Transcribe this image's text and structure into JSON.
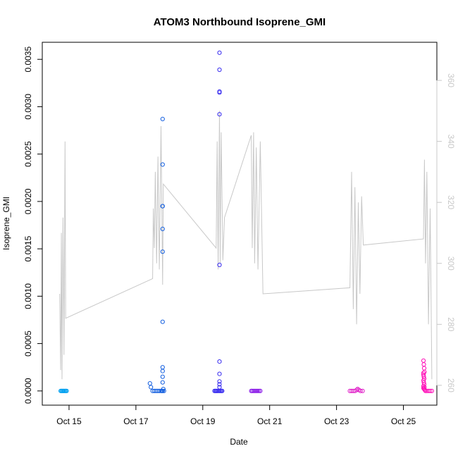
{
  "chart_data": {
    "type": "scatter",
    "title": "ATOM3 Northbound Isoprene_GMI",
    "xlabel": "Date",
    "ylabel": "Isoprene_GMI",
    "x_unit": "days (October, day-of-month)",
    "xlim": [
      14.2,
      26.0
    ],
    "ylim": [
      -0.00015,
      0.00368
    ],
    "y2lim": [
      253.5,
      372.5
    ],
    "x_ticks": [
      {
        "value": 15,
        "label": "Oct 15"
      },
      {
        "value": 17,
        "label": "Oct 17"
      },
      {
        "value": 19,
        "label": "Oct 19"
      },
      {
        "value": 21,
        "label": "Oct 21"
      },
      {
        "value": 23,
        "label": "Oct 23"
      },
      {
        "value": 25,
        "label": "Oct 25"
      }
    ],
    "y_ticks": [
      {
        "value": 0,
        "label": "0.0000"
      },
      {
        "value": 0.0005,
        "label": "0.0005"
      },
      {
        "value": 0.001,
        "label": "0.0010"
      },
      {
        "value": 0.0015,
        "label": "0.0015"
      },
      {
        "value": 0.002,
        "label": "0.0020"
      },
      {
        "value": 0.0025,
        "label": "0.0025"
      },
      {
        "value": 0.003,
        "label": "0.0030"
      },
      {
        "value": 0.0035,
        "label": "0.0035"
      }
    ],
    "y2_ticks": [
      {
        "value": 260,
        "label": "260"
      },
      {
        "value": 280,
        "label": "280"
      },
      {
        "value": 300,
        "label": "300"
      },
      {
        "value": 320,
        "label": "320"
      },
      {
        "value": 340,
        "label": "340"
      },
      {
        "value": 360,
        "label": "360"
      }
    ],
    "grid": false,
    "legend": "none",
    "colors": {
      "line": "#c8c8c8",
      "axis": "#000000",
      "right_axis": "#c8c8c8"
    },
    "scatter_series": [
      {
        "color": "#00a0f0",
        "points": [
          [
            14.75,
            0
          ],
          [
            14.78,
            0
          ],
          [
            14.8,
            0
          ],
          [
            14.83,
            0
          ],
          [
            14.85,
            0
          ],
          [
            14.88,
            0
          ],
          [
            14.9,
            0
          ],
          [
            14.93,
            0
          ]
        ]
      },
      {
        "color": "#1560e0",
        "points": [
          [
            17.42,
            8e-05
          ],
          [
            17.45,
            4e-05
          ],
          [
            17.5,
            0
          ],
          [
            17.55,
            0
          ],
          [
            17.6,
            0
          ],
          [
            17.65,
            0
          ],
          [
            17.7,
            0
          ],
          [
            17.75,
            0
          ],
          [
            17.78,
            0
          ],
          [
            17.8,
            0
          ],
          [
            17.82,
            2e-05
          ],
          [
            17.84,
            0
          ],
          [
            17.8,
            0.00287
          ],
          [
            17.8,
            0.00239
          ],
          [
            17.8,
            0.00195
          ],
          [
            17.8,
            0.00195
          ],
          [
            17.8,
            0.00171
          ],
          [
            17.8,
            0.00147
          ],
          [
            17.8,
            0.00073
          ],
          [
            17.8,
            0.00025
          ],
          [
            17.8,
            0.00021
          ],
          [
            17.8,
            0.00015
          ],
          [
            17.8,
            9e-05
          ]
        ]
      },
      {
        "color": "#3a2ef0",
        "points": [
          [
            19.35,
            0
          ],
          [
            19.38,
            0
          ],
          [
            19.4,
            0
          ],
          [
            19.43,
            0
          ],
          [
            19.46,
            0
          ],
          [
            19.5,
            0
          ],
          [
            19.53,
            0
          ],
          [
            19.56,
            0
          ],
          [
            19.58,
            0
          ],
          [
            19.5,
            0.00357
          ],
          [
            19.5,
            0.00339
          ],
          [
            19.5,
            0.00316
          ],
          [
            19.5,
            0.00315
          ],
          [
            19.5,
            0.00292
          ],
          [
            19.5,
            0.00133
          ],
          [
            19.5,
            0.00031
          ],
          [
            19.5,
            0.00018
          ],
          [
            19.5,
            0.0001
          ],
          [
            19.5,
            7e-05
          ],
          [
            19.5,
            4e-05
          ]
        ]
      },
      {
        "color": "#8a1ae8",
        "points": [
          [
            20.45,
            0
          ],
          [
            20.48,
            0
          ],
          [
            20.52,
            0
          ],
          [
            20.56,
            0
          ],
          [
            20.6,
            0
          ],
          [
            20.64,
            0
          ],
          [
            20.68,
            0
          ],
          [
            20.72,
            0
          ]
        ]
      },
      {
        "color": "#e020c8",
        "points": [
          [
            23.4,
            0
          ],
          [
            23.45,
            0
          ],
          [
            23.5,
            0
          ],
          [
            23.55,
            0
          ],
          [
            23.6,
            1e-05
          ],
          [
            23.63,
            2e-05
          ],
          [
            23.67,
            1e-05
          ],
          [
            23.72,
            0
          ],
          [
            23.78,
            0
          ]
        ]
      },
      {
        "color": "#ff10b8",
        "points": [
          [
            25.6,
            0.00032
          ],
          [
            25.61,
            0.00028
          ],
          [
            25.62,
            0.00024
          ],
          [
            25.63,
            0.0002
          ],
          [
            25.6,
            0.00019
          ],
          [
            25.6,
            0.00017
          ],
          [
            25.61,
            0.00015
          ],
          [
            25.62,
            0.00013
          ],
          [
            25.6,
            0.00011
          ],
          [
            25.61,
            9e-05
          ],
          [
            25.62,
            7e-05
          ],
          [
            25.6,
            5e-05
          ],
          [
            25.63,
            4e-05
          ],
          [
            25.6,
            3e-05
          ],
          [
            25.62,
            2e-05
          ],
          [
            25.64,
            1e-05
          ],
          [
            25.66,
            0
          ],
          [
            25.7,
            0
          ],
          [
            25.75,
            0
          ],
          [
            25.8,
            0
          ],
          [
            25.85,
            0
          ]
        ]
      }
    ],
    "line_series": {
      "axis": "right",
      "points": [
        [
          14.72,
          290
        ],
        [
          14.75,
          265
        ],
        [
          14.77,
          310
        ],
        [
          14.79,
          262
        ],
        [
          14.82,
          315
        ],
        [
          14.85,
          270
        ],
        [
          14.88,
          340
        ],
        [
          14.9,
          282
        ],
        [
          17.5,
          295
        ],
        [
          17.52,
          318
        ],
        [
          17.55,
          305
        ],
        [
          17.58,
          330
        ],
        [
          17.62,
          300
        ],
        [
          17.66,
          335
        ],
        [
          17.7,
          298
        ],
        [
          17.75,
          345
        ],
        [
          17.8,
          293
        ],
        [
          17.82,
          326
        ],
        [
          19.4,
          305
        ],
        [
          19.43,
          340
        ],
        [
          19.46,
          298
        ],
        [
          19.5,
          350
        ],
        [
          19.52,
          300
        ],
        [
          19.55,
          343
        ],
        [
          19.6,
          301
        ],
        [
          19.65,
          315
        ],
        [
          20.45,
          342
        ],
        [
          20.48,
          305
        ],
        [
          20.52,
          343
        ],
        [
          20.55,
          300
        ],
        [
          20.6,
          338
        ],
        [
          20.65,
          298
        ],
        [
          20.72,
          340
        ],
        [
          20.8,
          290
        ],
        [
          23.4,
          292
        ],
        [
          23.45,
          330
        ],
        [
          23.5,
          285
        ],
        [
          23.55,
          325
        ],
        [
          23.6,
          280
        ],
        [
          23.65,
          320
        ],
        [
          23.7,
          290
        ],
        [
          23.75,
          322
        ],
        [
          23.8,
          306
        ],
        [
          25.6,
          308
        ],
        [
          25.63,
          334
        ],
        [
          25.66,
          300
        ],
        [
          25.7,
          330
        ],
        [
          25.75,
          280
        ],
        [
          25.8,
          318
        ],
        [
          25.85,
          262
        ]
      ]
    }
  }
}
